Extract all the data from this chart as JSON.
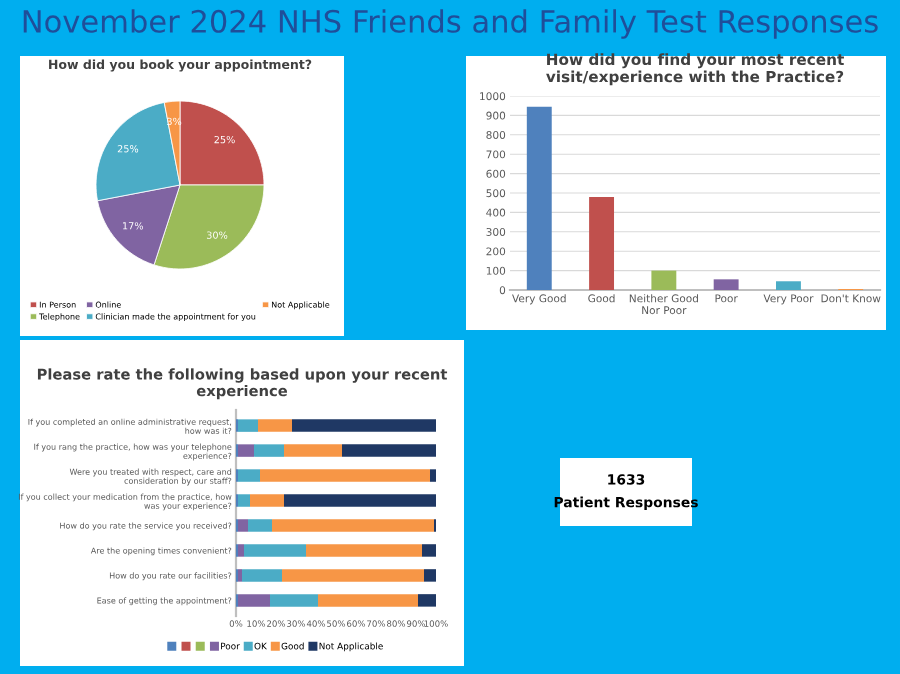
{
  "chart_data": [
    {
      "type": "other",
      "title": "November 2024 NHS Friends and Family Test Responses"
    },
    {
      "type": "pie",
      "title": "How did you book your appointment?",
      "categories": [
        "In Person",
        "Telephone",
        "Online",
        "Clinician made the appointment for you",
        "Not Applicable"
      ],
      "values": [
        25,
        30,
        17,
        25,
        3
      ],
      "value_labels": [
        "25%",
        "30%",
        "17%",
        "25%",
        "3%"
      ],
      "colors": [
        "#c0504d",
        "#9bbb59",
        "#8064a2",
        "#4bacc6",
        "#f79646"
      ],
      "legend": "bottom"
    },
    {
      "type": "bar",
      "title": "How did you find your most recent\nvisit/experience with the Practice?",
      "categories": [
        "Very Good",
        "Good",
        "Neither Good\nNor Poor",
        "Poor",
        "Very Poor",
        "Don't Know"
      ],
      "values": [
        945,
        480,
        100,
        55,
        45,
        5
      ],
      "colors": [
        "#4f81bd",
        "#c0504d",
        "#9bbb59",
        "#8064a2",
        "#4bacc6",
        "#f79646"
      ],
      "ylim": [
        0,
        1000
      ],
      "yticks": [
        0,
        100,
        200,
        300,
        400,
        500,
        600,
        700,
        800,
        900,
        1000
      ],
      "grid": "y"
    },
    {
      "type": "bar",
      "title": "Please rate the following based upon your recent\nexperience",
      "orientation": "horizontal",
      "stacked": true,
      "categories": [
        "If you completed an online administrative request,\nhow was it?",
        "If you rang the practice, how was your telephone\nexperience?",
        "Were you treated with respect, care and\nconsideration by our staff?",
        "If you collect your medication from the practice, how\nwas your experience?",
        "How do you rate the service you received?",
        "Are the opening times convenient?",
        "How do you rate our facilities?",
        "Ease of getting the appointment?"
      ],
      "series": [
        {
          "color": "#4f81bd",
          "values": [
            1,
            1,
            1,
            1,
            1,
            1,
            1,
            1
          ]
        },
        {
          "color": "#c0504d",
          "values": [
            0,
            0,
            0,
            0,
            0,
            0,
            0,
            0
          ]
        },
        {
          "color": "#9bbb59",
          "values": [
            0,
            0,
            0,
            0,
            0,
            0,
            0,
            0
          ]
        },
        {
          "name": "Poor",
          "color": "#8064a2",
          "values": [
            0,
            8,
            0,
            0,
            5,
            3,
            2,
            16
          ]
        },
        {
          "name": "OK",
          "color": "#4bacc6",
          "values": [
            10,
            15,
            11,
            6,
            12,
            31,
            20,
            24
          ]
        },
        {
          "name": "Good",
          "color": "#f79646",
          "values": [
            17,
            29,
            85,
            17,
            81,
            58,
            71,
            50
          ]
        },
        {
          "name": "Not Applicable",
          "color": "#1f3864",
          "values": [
            72,
            47,
            3,
            76,
            1,
            7,
            6,
            9
          ]
        }
      ],
      "xlim": [
        0,
        100
      ],
      "xticks": [
        {
          "value": 0,
          "label": "0%"
        },
        {
          "value": 10,
          "label": "10%"
        },
        {
          "value": 20,
          "label": "20%"
        },
        {
          "value": 30,
          "label": "30%"
        },
        {
          "value": 40,
          "label": "40%"
        },
        {
          "value": 50,
          "label": "50%"
        },
        {
          "value": 60,
          "label": "60%"
        },
        {
          "value": 70,
          "label": "70%"
        },
        {
          "value": 80,
          "label": "80%"
        },
        {
          "value": 90,
          "label": "90%"
        },
        {
          "value": 100,
          "label": "100%"
        }
      ],
      "legend": "bottom"
    },
    {
      "type": "other",
      "annotations": [
        "1633",
        "Patient Responses"
      ]
    }
  ]
}
